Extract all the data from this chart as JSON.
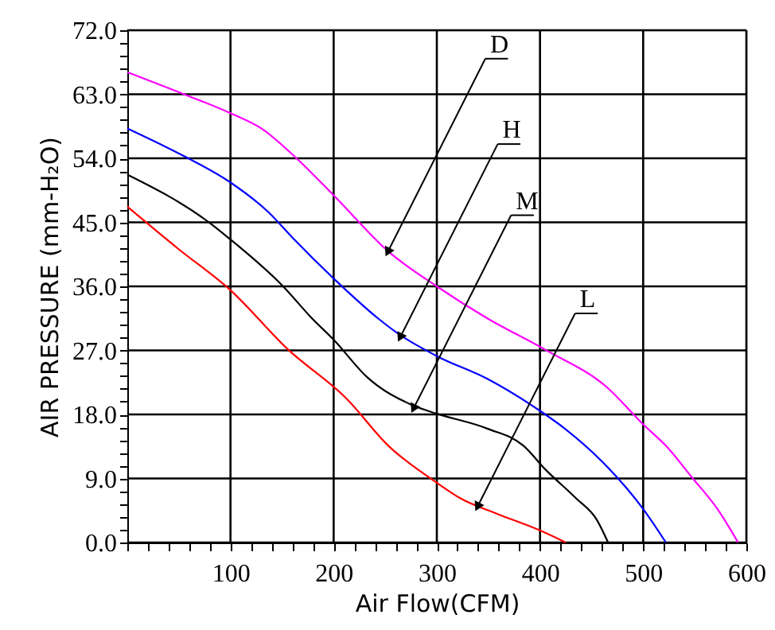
{
  "chart_data": {
    "type": "line",
    "xlabel": "Air Flow(CFM)",
    "ylabel": "AIR PRESSURE (mm-H₂O)",
    "xlim": [
      0,
      600
    ],
    "ylim": [
      0,
      72
    ],
    "xticks": [
      {
        "value": 0,
        "label": null
      },
      {
        "value": 20,
        "label": null
      },
      {
        "value": 40,
        "label": null
      },
      {
        "value": 60,
        "label": null
      },
      {
        "value": 80,
        "label": null
      },
      100,
      {
        "value": 120,
        "label": null
      },
      {
        "value": 140,
        "label": null
      },
      {
        "value": 160,
        "label": null
      },
      {
        "value": 180,
        "label": null
      },
      200,
      {
        "value": 220,
        "label": null
      },
      {
        "value": 240,
        "label": null
      },
      {
        "value": 260,
        "label": null
      },
      {
        "value": 280,
        "label": null
      },
      300,
      {
        "value": 320,
        "label": null
      },
      {
        "value": 340,
        "label": null
      },
      {
        "value": 360,
        "label": null
      },
      {
        "value": 380,
        "label": null
      },
      400,
      {
        "value": 420,
        "label": null
      },
      {
        "value": 440,
        "label": null
      },
      {
        "value": 460,
        "label": null
      },
      {
        "value": 480,
        "label": null
      },
      500,
      {
        "value": 520,
        "label": null
      },
      {
        "value": 540,
        "label": null
      },
      {
        "value": 560,
        "label": null
      },
      {
        "value": 580,
        "label": null
      },
      600
    ],
    "yticks": [
      {
        "value": 0,
        "label": "0.0"
      },
      {
        "value": 1.8,
        "label": null
      },
      {
        "value": 3.6,
        "label": null
      },
      {
        "value": 5.4,
        "label": null
      },
      {
        "value": 7.2,
        "label": null
      },
      {
        "value": 9,
        "label": "9.0"
      },
      {
        "value": 10.8,
        "label": null
      },
      {
        "value": 12.6,
        "label": null
      },
      {
        "value": 14.4,
        "label": null
      },
      {
        "value": 16.2,
        "label": null
      },
      {
        "value": 18,
        "label": "18.0"
      },
      {
        "value": 19.8,
        "label": null
      },
      {
        "value": 21.6,
        "label": null
      },
      {
        "value": 23.4,
        "label": null
      },
      {
        "value": 25.2,
        "label": null
      },
      {
        "value": 27,
        "label": "27.0"
      },
      {
        "value": 28.8,
        "label": null
      },
      {
        "value": 30.6,
        "label": null
      },
      {
        "value": 32.4,
        "label": null
      },
      {
        "value": 34.2,
        "label": null
      },
      {
        "value": 36,
        "label": "36.0"
      },
      {
        "value": 37.8,
        "label": null
      },
      {
        "value": 39.6,
        "label": null
      },
      {
        "value": 41.4,
        "label": null
      },
      {
        "value": 43.2,
        "label": null
      },
      {
        "value": 45,
        "label": "45.0"
      },
      {
        "value": 46.8,
        "label": null
      },
      {
        "value": 48.6,
        "label": null
      },
      {
        "value": 50.4,
        "label": null
      },
      {
        "value": 52.2,
        "label": null
      },
      {
        "value": 54,
        "label": "54.0"
      },
      {
        "value": 55.8,
        "label": null
      },
      {
        "value": 57.6,
        "label": null
      },
      {
        "value": 59.4,
        "label": null
      },
      {
        "value": 61.2,
        "label": null
      },
      {
        "value": 63,
        "label": "63.0"
      },
      {
        "value": 64.8,
        "label": null
      },
      {
        "value": 66.6,
        "label": null
      },
      {
        "value": 68.4,
        "label": null
      },
      {
        "value": 70.2,
        "label": null
      },
      {
        "value": 72,
        "label": "72.0"
      }
    ],
    "grid": true,
    "marker": "none",
    "line_style": "solid",
    "series": [
      {
        "color": "#ff00ff",
        "x": [
          0,
          55,
          99,
          131,
          164,
          200,
          253,
          300,
          349,
          405,
          465,
          500,
          522,
          547,
          572,
          592
        ],
        "values": [
          66.1,
          63.0,
          60.4,
          58.1,
          54.0,
          48.8,
          40.9,
          36.0,
          31.5,
          27.1,
          21.8,
          16.6,
          13.6,
          9.2,
          4.7,
          0
        ]
      },
      {
        "color": "#0000ff",
        "x": [
          0,
          55,
          99,
          137,
          161,
          200,
          243,
          263,
          300,
          349,
          400,
          425,
          460,
          500,
          522
        ],
        "values": [
          58.2,
          54.3,
          50.7,
          46.4,
          42.7,
          37.1,
          31.5,
          29.3,
          26.2,
          23.0,
          18.5,
          15.9,
          11.4,
          4.7,
          0
        ]
      },
      {
        "color": "#000000",
        "x": [
          0,
          80,
          99,
          151,
          179,
          200,
          232,
          278,
          300,
          349,
          384,
          405,
          435,
          455,
          466
        ],
        "values": [
          51.7,
          44.9,
          42.7,
          36.0,
          31.5,
          28.5,
          23.3,
          19.2,
          18.1,
          16.0,
          13.6,
          10.3,
          6.2,
          3.2,
          0
        ]
      },
      {
        "color": "#ff0000",
        "x": [
          0,
          50,
          99,
          156,
          212,
          253,
          300,
          323,
          359,
          400,
          425
        ],
        "values": [
          47.2,
          41.2,
          35.6,
          27.1,
          20.3,
          13.6,
          8.4,
          6.2,
          4.0,
          1.7,
          0
        ]
      }
    ],
    "annotations": [
      {
        "text": "D",
        "x": 253,
        "y": 41
      },
      {
        "text": "H",
        "x": 265,
        "y": 29
      },
      {
        "text": "M",
        "x": 278,
        "y": 19
      },
      {
        "text": "L",
        "x": 340,
        "y": 5.2
      }
    ]
  }
}
